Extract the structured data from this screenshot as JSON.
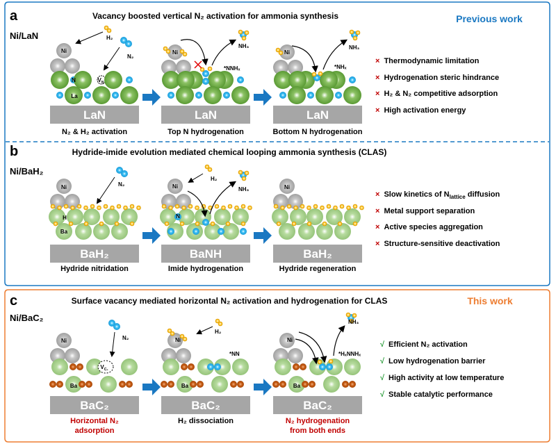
{
  "colors": {
    "blue_frame": "#1a78c2",
    "orange_frame": "#ed7d31",
    "accent_blue": "#1a78c2",
    "accent_orange": "#ed7d31",
    "red": "#c00000",
    "check_green": "#2e9e3e",
    "la_green": "#6aa83e",
    "ba_green": "#a9d18e",
    "ni_gray": "#b0b0b0",
    "n_blue": "#20a8e8",
    "h_yellow": "#f5b800",
    "c_brown": "#c55a11",
    "slab_gray": "#a6a6a6"
  },
  "panel_a": {
    "letter": "a",
    "title": "Vacancy boosted vertical N₂ activation for ammonia synthesis",
    "tag": "Previous work",
    "system": "Ni/LaN",
    "slab": "LaN",
    "labels": {
      "h2": "H₂",
      "n2": "N₂",
      "nh3": "NH₃",
      "nnhx": "*NNHₓ",
      "nhx": "*NHₓ",
      "ni": "Ni",
      "n": "N",
      "la": "La",
      "vac": "V",
      "vac_sub": "N"
    },
    "captions": [
      "N₂ & H₂ activation",
      "Top N hydrogenation",
      "Bottom N hydrogenation"
    ],
    "points": [
      {
        "mark": "×",
        "text": "Thermodynamic limitation"
      },
      {
        "mark": "×",
        "text": "Hydrogenation steric hindrance"
      },
      {
        "mark": "×",
        "text": "H₂ & N₂ competitive adsorption"
      },
      {
        "mark": "×",
        "text": "High activation energy"
      }
    ]
  },
  "panel_b": {
    "letter": "b",
    "title": "Hydride-imide evolution mediated chemical looping ammonia synthesis (CLAS)",
    "system": "Ni/BaH₂",
    "slabs": [
      "BaH₂",
      "BaNH",
      "BaH₂"
    ],
    "labels": {
      "h2": "H₂",
      "n2": "N₂",
      "nh3": "NH₃",
      "ni": "Ni",
      "h": "H",
      "ba": "Ba",
      "n": "N"
    },
    "captions": [
      "Hydride nitridation",
      "Imide hydrogenation",
      "Hydride regeneration"
    ],
    "points": [
      {
        "mark": "×",
        "pre": "Slow kinetics of N",
        "sub": "lattice",
        "post": " diffusion"
      },
      {
        "mark": "×",
        "text": "Metal support separation"
      },
      {
        "mark": "×",
        "text": "Active species aggregation"
      },
      {
        "mark": "×",
        "text": "Structure-sensitive deactivation"
      }
    ]
  },
  "panel_c": {
    "letter": "c",
    "title": "Surface vacancy mediated horizontal N₂ activation and hydrogenation for CLAS",
    "tag": "This work",
    "system": "Ni/BaC₂",
    "slab": "BaC₂",
    "labels": {
      "h2": "H₂",
      "n2": "N₂",
      "nh3": "NH₃",
      "nn": "*NN",
      "hxnnhx": "*HₓNNHₓ",
      "ni": "Ni",
      "ba": "Ba",
      "c": "C",
      "vac": "V",
      "vac_sub": "C₂"
    },
    "captions": [
      [
        "Horizontal N₂",
        "adsorption"
      ],
      [
        "H₂ dissociation"
      ],
      [
        "N₂ hydrogenation",
        "from both ends"
      ]
    ],
    "points": [
      {
        "mark": "√",
        "text": "Efficient N₂ activation"
      },
      {
        "mark": "√",
        "text": "Low hydrogenation barrier"
      },
      {
        "mark": "√",
        "text": "High activity at low temperature"
      },
      {
        "mark": "√",
        "text": "Stable catalytic performance"
      }
    ]
  }
}
